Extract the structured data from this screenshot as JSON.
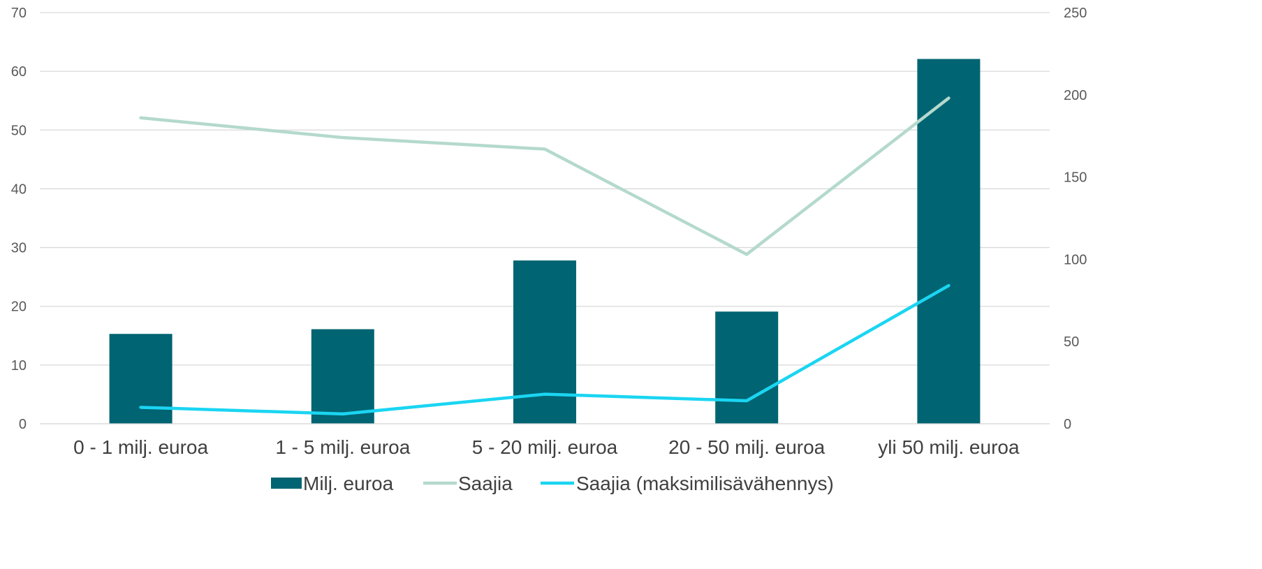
{
  "chart_data": {
    "type": "bar",
    "title": "",
    "categories": [
      "0 - 1 milj. euroa",
      "1 - 5 milj. euroa",
      "5 - 20 milj. euroa",
      "20 - 50 milj. euroa",
      "yli 50 milj. euroa"
    ],
    "y_left": {
      "range": [
        0,
        70
      ],
      "ticks": [
        "0",
        "10",
        "20",
        "30",
        "40",
        "50",
        "60",
        "70"
      ]
    },
    "y_right": {
      "range": [
        0,
        250
      ],
      "ticks": [
        "0",
        "50",
        "100",
        "150",
        "200",
        "250"
      ]
    },
    "grid": true,
    "legend_position": "bottom",
    "series": [
      {
        "name": "Milj. euroa",
        "kind": "bar",
        "axis": "left",
        "color": "#006472",
        "values": [
          15.3,
          16.1,
          27.8,
          19.1,
          62.1
        ]
      },
      {
        "name": "Saajia",
        "kind": "line",
        "axis": "right",
        "color": "#b4d9cd",
        "values": [
          186,
          174,
          167,
          103,
          198
        ]
      },
      {
        "name": "Saajia (maksimilisävähennys)",
        "kind": "line",
        "axis": "right",
        "color": "#1ad5f2",
        "values": [
          10,
          6,
          18,
          14,
          84
        ]
      }
    ]
  }
}
